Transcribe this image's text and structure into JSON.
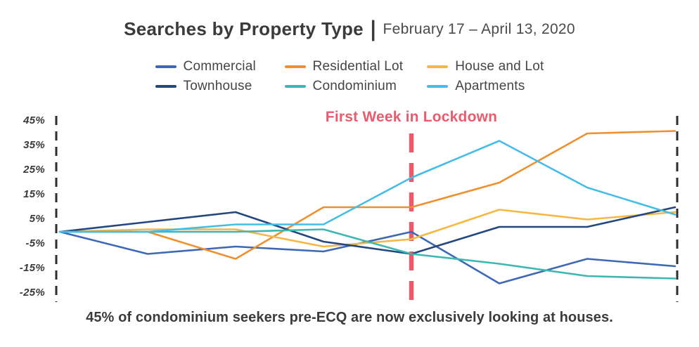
{
  "title": {
    "main": "Searches by Property Type",
    "separator": "|",
    "date_range": "February 17 – April 13, 2020"
  },
  "annotation": {
    "label": "First Week in Lockdown",
    "color": "#e85c6e",
    "at_week": 5
  },
  "y_axis": {
    "tick_labels": [
      "45%",
      "35%",
      "25%",
      "15%",
      "5%",
      "-5%",
      "-15%",
      "-25%"
    ],
    "tick_values": [
      45,
      35,
      25,
      15,
      5,
      -5,
      -15,
      -25
    ]
  },
  "caption": "45% of condominium seekers pre-ECQ are now exclusively looking at houses.",
  "chart_data": {
    "type": "line",
    "x": [
      1,
      2,
      3,
      4,
      5,
      6,
      7,
      8
    ],
    "x_unit": "week",
    "x_range_label": "February 17 – April 13, 2020",
    "ylim": [
      -25,
      45
    ],
    "yticks": [
      45,
      35,
      25,
      15,
      5,
      -5,
      -15,
      -25
    ],
    "grid": false,
    "legend_position": "top",
    "axis_edge_style": "black-dashed-vertical-lines",
    "series": [
      {
        "name": "Commercial",
        "color": "#3e68b5",
        "values": [
          0,
          -9,
          -6,
          -8,
          0,
          -21,
          -11,
          -14
        ]
      },
      {
        "name": "Residential Lot",
        "color": "#ef8f2e",
        "values": [
          0,
          0,
          -11,
          10,
          10,
          20,
          40,
          41
        ]
      },
      {
        "name": "House and Lot",
        "color": "#f5b942",
        "values": [
          0,
          1,
          1,
          -6,
          -3,
          9,
          5,
          8
        ]
      },
      {
        "name": "Townhouse",
        "color": "#24477e",
        "values": [
          0,
          4,
          8,
          -4,
          -9,
          2,
          2,
          10
        ]
      },
      {
        "name": "Condominium",
        "color": "#3cb8b2",
        "values": [
          0,
          0,
          0,
          1,
          -9,
          -13,
          -18,
          -19
        ]
      },
      {
        "name": "Apartments",
        "color": "#45bde8",
        "values": [
          0,
          0,
          3,
          3,
          22,
          37,
          18,
          7
        ]
      }
    ]
  }
}
